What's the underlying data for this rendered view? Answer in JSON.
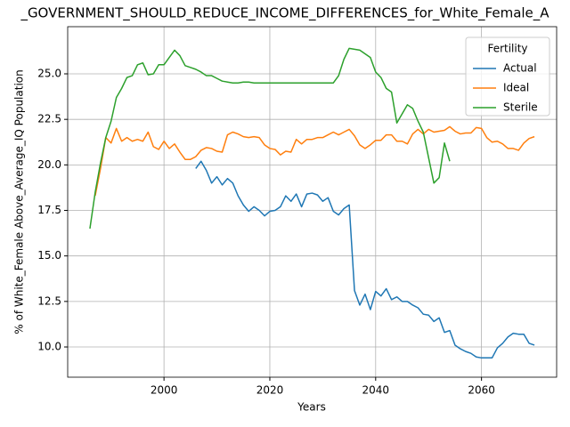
{
  "chart_data": {
    "type": "line",
    "title": "_GOVERNMENT_SHOULD_REDUCE_INCOME_DIFFERENCES_for_White_Female_A",
    "x_label": "Years",
    "y_label": "% of White_Female Above_Average_IQ Population",
    "legend_title": "Fertility",
    "legend_position": "upper right",
    "grid": true,
    "x": [
      1986,
      1987,
      1988,
      1989,
      1990,
      1991,
      1992,
      1993,
      1994,
      1995,
      1996,
      1997,
      1998,
      1999,
      2000,
      2001,
      2002,
      2003,
      2004,
      2005,
      2006,
      2007,
      2008,
      2009,
      2010,
      2011,
      2012,
      2013,
      2014,
      2015,
      2016,
      2017,
      2018,
      2019,
      2020,
      2021,
      2022,
      2023,
      2024,
      2025,
      2026,
      2027,
      2028,
      2029,
      2030,
      2031,
      2032,
      2033,
      2034,
      2035,
      2036,
      2037,
      2038,
      2039,
      2040,
      2041,
      2042,
      2043,
      2044,
      2045,
      2046,
      2047,
      2048,
      2049,
      2050,
      2051,
      2052,
      2053,
      2054,
      2055,
      2056,
      2057,
      2058,
      2059,
      2060,
      2061,
      2062,
      2063,
      2064,
      2065,
      2066,
      2067,
      2068,
      2069,
      2070
    ],
    "series": [
      {
        "name": "Actual",
        "color": "#1f77b4",
        "values": [
          null,
          null,
          null,
          null,
          null,
          null,
          null,
          null,
          null,
          null,
          null,
          null,
          null,
          null,
          null,
          null,
          null,
          null,
          null,
          null,
          19.8,
          20.2,
          19.7,
          19.0,
          19.35,
          18.9,
          19.25,
          19.0,
          18.3,
          17.8,
          17.45,
          17.7,
          17.5,
          17.2,
          17.45,
          17.5,
          17.7,
          18.3,
          18.0,
          18.4,
          17.7,
          18.4,
          18.45,
          18.35,
          18.0,
          18.2,
          17.45,
          17.25,
          17.6,
          17.8,
          13.1,
          12.3,
          12.9,
          12.05,
          13.05,
          12.8,
          13.2,
          12.6,
          12.75,
          12.5,
          12.5,
          12.3,
          12.15,
          11.8,
          11.75,
          11.4,
          11.6,
          10.8,
          10.9,
          10.1,
          9.9,
          9.75,
          9.65,
          9.45,
          9.4,
          9.4,
          9.4,
          9.95,
          10.2,
          10.55,
          10.75,
          10.7,
          10.7,
          10.2,
          10.1
        ]
      },
      {
        "name": "Ideal",
        "color": "#ff7f0e",
        "values": [
          null,
          18.3,
          19.8,
          21.5,
          21.2,
          22.0,
          21.3,
          21.5,
          21.3,
          21.4,
          21.3,
          21.8,
          21.0,
          20.85,
          21.3,
          20.9,
          21.15,
          20.7,
          20.3,
          20.3,
          20.45,
          20.8,
          20.95,
          20.9,
          20.75,
          20.7,
          21.65,
          21.8,
          21.7,
          21.55,
          21.5,
          21.55,
          21.5,
          21.1,
          20.9,
          20.85,
          20.55,
          20.75,
          20.7,
          21.4,
          21.15,
          21.4,
          21.4,
          21.5,
          21.5,
          21.65,
          21.8,
          21.65,
          21.8,
          21.95,
          21.6,
          21.1,
          20.9,
          21.1,
          21.35,
          21.35,
          21.65,
          21.65,
          21.3,
          21.3,
          21.15,
          21.7,
          21.95,
          21.7,
          21.95,
          21.8,
          21.85,
          21.9,
          22.1,
          21.85,
          21.7,
          21.75,
          21.75,
          22.05,
          22.0,
          21.5,
          21.25,
          21.3,
          21.15,
          20.9,
          20.9,
          20.8,
          21.2,
          21.45,
          21.55
        ]
      },
      {
        "name": "Sterile",
        "color": "#2ca02c",
        "values": [
          16.5,
          18.5,
          20.1,
          21.5,
          22.4,
          23.7,
          24.2,
          24.8,
          24.9,
          25.5,
          25.6,
          24.95,
          25.0,
          25.5,
          25.5,
          25.9,
          26.3,
          26.0,
          25.45,
          25.35,
          25.25,
          25.1,
          24.9,
          24.9,
          24.75,
          24.6,
          24.55,
          24.5,
          24.5,
          24.55,
          24.55,
          24.5,
          24.5,
          24.5,
          24.5,
          24.5,
          24.5,
          24.5,
          24.5,
          24.5,
          24.5,
          24.5,
          24.5,
          24.5,
          24.5,
          24.5,
          24.5,
          24.9,
          25.8,
          26.4,
          26.35,
          26.3,
          26.1,
          25.9,
          25.1,
          24.8,
          24.2,
          24.0,
          22.3,
          22.8,
          23.3,
          23.1,
          22.4,
          21.8,
          20.4,
          19.0,
          19.3,
          21.2,
          20.2,
          null,
          null,
          null,
          null,
          null,
          null,
          null,
          null,
          null,
          null,
          null,
          null,
          null,
          null,
          null,
          null
        ]
      }
    ],
    "xlim": [
      1981.8,
      2074.2
    ],
    "xticks": [
      2000,
      2020,
      2040,
      2060
    ],
    "ylim": [
      8.34,
      27.59
    ],
    "yticks": [
      {
        "value": 10,
        "label": "10.0"
      },
      12.5,
      {
        "value": 15,
        "label": "15.0"
      },
      17.5,
      {
        "value": 20,
        "label": "20.0"
      },
      22.5,
      {
        "value": 25,
        "label": "25.0"
      }
    ]
  }
}
